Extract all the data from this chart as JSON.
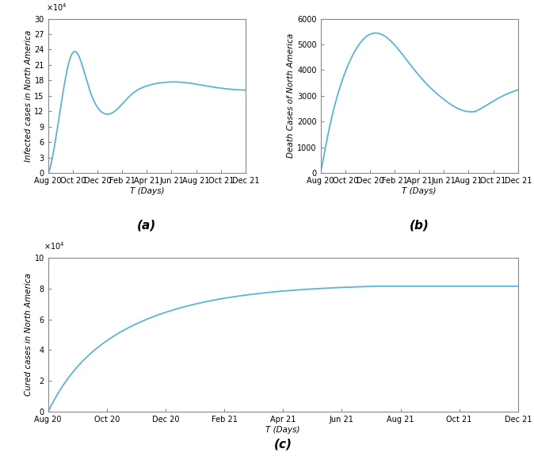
{
  "line_color": "#5ab4d6",
  "line_width": 1.3,
  "background_color": "#ffffff",
  "tick_label_fontsize": 7.0,
  "axis_label_fontsize": 7.5,
  "subplot_label_fontsize": 11,
  "xlabel": "T (Days)",
  "ylabel_a": "Infected cases in North America",
  "ylabel_b": "Death Cases of North America",
  "ylabel_c": "Cured cases in North America",
  "label_a": "(a)",
  "label_b": "(b)",
  "label_c": "(c)",
  "xtick_labels": [
    "Aug 20",
    "Oct 20",
    "Dec 20",
    "Feb 21",
    "Apr 21",
    "Jun 21",
    "Aug 21",
    "Oct 21",
    "Dec 21"
  ],
  "tick_positions": [
    0,
    2,
    4,
    6,
    8,
    10,
    12,
    14,
    16
  ],
  "ylim_a": [
    0,
    30
  ],
  "ylim_b": [
    0,
    6000
  ],
  "ylim_c": [
    0,
    10
  ],
  "yticks_a": [
    0,
    3,
    6,
    9,
    12,
    15,
    18,
    21,
    24,
    27,
    30
  ],
  "yticks_b": [
    0,
    1000,
    2000,
    3000,
    4000,
    5000,
    6000
  ],
  "yticks_c": [
    0,
    2,
    4,
    6,
    8,
    10
  ]
}
